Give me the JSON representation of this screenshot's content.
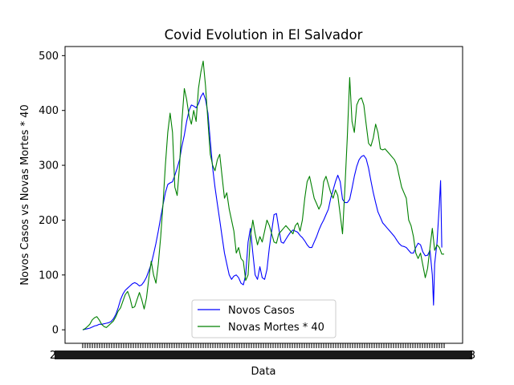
{
  "chart_data": {
    "type": "line",
    "title": "Covid Evolution in El Salvador",
    "xlabel": "Data",
    "ylabel": "Novos Casos vs Novas Mortes * 40",
    "ylim": [
      -24.6,
      516.6
    ],
    "yticks": [
      0,
      100,
      200,
      300,
      400,
      500
    ],
    "xtick_labels": {
      "left": "2",
      "right": "3"
    },
    "grid": false,
    "legend_position": "lower-center",
    "series": [
      {
        "name": "Novos Casos",
        "color": "#0000ff",
        "points": [
          [
            0,
            0
          ],
          [
            2,
            1
          ],
          [
            4,
            2
          ],
          [
            6,
            3
          ],
          [
            8,
            5
          ],
          [
            10,
            7
          ],
          [
            12,
            8
          ],
          [
            14,
            10
          ],
          [
            16,
            10
          ],
          [
            18,
            11
          ],
          [
            20,
            12
          ],
          [
            22,
            13
          ],
          [
            24,
            15
          ],
          [
            26,
            20
          ],
          [
            28,
            28
          ],
          [
            30,
            40
          ],
          [
            32,
            55
          ],
          [
            34,
            65
          ],
          [
            36,
            72
          ],
          [
            38,
            76
          ],
          [
            40,
            80
          ],
          [
            42,
            84
          ],
          [
            44,
            86
          ],
          [
            46,
            84
          ],
          [
            48,
            80
          ],
          [
            50,
            82
          ],
          [
            52,
            88
          ],
          [
            54,
            96
          ],
          [
            56,
            108
          ],
          [
            58,
            120
          ],
          [
            60,
            138
          ],
          [
            62,
            158
          ],
          [
            64,
            180
          ],
          [
            66,
            205
          ],
          [
            68,
            228
          ],
          [
            70,
            250
          ],
          [
            72,
            265
          ],
          [
            74,
            268
          ],
          [
            76,
            270
          ],
          [
            78,
            282
          ],
          [
            80,
            295
          ],
          [
            82,
            310
          ],
          [
            84,
            335
          ],
          [
            86,
            355
          ],
          [
            88,
            380
          ],
          [
            90,
            400
          ],
          [
            92,
            410
          ],
          [
            94,
            408
          ],
          [
            96,
            405
          ],
          [
            98,
            412
          ],
          [
            100,
            425
          ],
          [
            102,
            432
          ],
          [
            104,
            420
          ],
          [
            106,
            395
          ],
          [
            108,
            345
          ],
          [
            110,
            295
          ],
          [
            112,
            260
          ],
          [
            114,
            230
          ],
          [
            116,
            200
          ],
          [
            118,
            170
          ],
          [
            120,
            140
          ],
          [
            122,
            120
          ],
          [
            124,
            100
          ],
          [
            126,
            92
          ],
          [
            128,
            98
          ],
          [
            130,
            100
          ],
          [
            132,
            95
          ],
          [
            134,
            85
          ],
          [
            136,
            82
          ],
          [
            138,
            100
          ],
          [
            140,
            160
          ],
          [
            142,
            185
          ],
          [
            144,
            140
          ],
          [
            146,
            100
          ],
          [
            148,
            92
          ],
          [
            150,
            115
          ],
          [
            152,
            95
          ],
          [
            154,
            92
          ],
          [
            156,
            110
          ],
          [
            158,
            150
          ],
          [
            160,
            180
          ],
          [
            162,
            210
          ],
          [
            164,
            212
          ],
          [
            166,
            185
          ],
          [
            168,
            160
          ],
          [
            170,
            158
          ],
          [
            172,
            165
          ],
          [
            174,
            172
          ],
          [
            176,
            178
          ],
          [
            178,
            182
          ],
          [
            180,
            180
          ],
          [
            182,
            178
          ],
          [
            184,
            172
          ],
          [
            186,
            168
          ],
          [
            188,
            162
          ],
          [
            190,
            155
          ],
          [
            192,
            150
          ],
          [
            194,
            150
          ],
          [
            196,
            160
          ],
          [
            198,
            170
          ],
          [
            200,
            182
          ],
          [
            202,
            192
          ],
          [
            204,
            200
          ],
          [
            206,
            210
          ],
          [
            208,
            220
          ],
          [
            210,
            240
          ],
          [
            212,
            255
          ],
          [
            214,
            270
          ],
          [
            216,
            282
          ],
          [
            218,
            270
          ],
          [
            220,
            238
          ],
          [
            222,
            232
          ],
          [
            224,
            232
          ],
          [
            226,
            238
          ],
          [
            228,
            258
          ],
          [
            230,
            280
          ],
          [
            232,
            298
          ],
          [
            234,
            310
          ],
          [
            236,
            316
          ],
          [
            238,
            318
          ],
          [
            240,
            312
          ],
          [
            242,
            295
          ],
          [
            244,
            272
          ],
          [
            246,
            250
          ],
          [
            248,
            232
          ],
          [
            250,
            215
          ],
          [
            252,
            205
          ],
          [
            254,
            195
          ],
          [
            256,
            190
          ],
          [
            258,
            185
          ],
          [
            260,
            180
          ],
          [
            262,
            175
          ],
          [
            264,
            170
          ],
          [
            266,
            163
          ],
          [
            268,
            157
          ],
          [
            270,
            153
          ],
          [
            272,
            152
          ],
          [
            274,
            150
          ],
          [
            276,
            145
          ],
          [
            278,
            140
          ],
          [
            280,
            140
          ],
          [
            282,
            150
          ],
          [
            284,
            158
          ],
          [
            286,
            155
          ],
          [
            288,
            142
          ],
          [
            290,
            135
          ],
          [
            292,
            136
          ],
          [
            294,
            145
          ],
          [
            296,
            100
          ],
          [
            297,
            45
          ],
          [
            298,
            120
          ],
          [
            300,
            160
          ],
          [
            302,
            230
          ],
          [
            303,
            272
          ],
          [
            304,
            150
          ]
        ]
      },
      {
        "name": "Novas Mortes * 40",
        "color": "#008000",
        "points": [
          [
            0,
            0
          ],
          [
            2,
            2
          ],
          [
            4,
            6
          ],
          [
            6,
            10
          ],
          [
            8,
            18
          ],
          [
            10,
            22
          ],
          [
            12,
            24
          ],
          [
            14,
            18
          ],
          [
            16,
            10
          ],
          [
            18,
            6
          ],
          [
            20,
            4
          ],
          [
            22,
            8
          ],
          [
            24,
            12
          ],
          [
            26,
            16
          ],
          [
            28,
            24
          ],
          [
            30,
            34
          ],
          [
            32,
            40
          ],
          [
            34,
            52
          ],
          [
            36,
            64
          ],
          [
            38,
            70
          ],
          [
            40,
            58
          ],
          [
            42,
            40
          ],
          [
            44,
            42
          ],
          [
            46,
            55
          ],
          [
            48,
            68
          ],
          [
            50,
            55
          ],
          [
            52,
            38
          ],
          [
            54,
            58
          ],
          [
            56,
            95
          ],
          [
            58,
            125
          ],
          [
            60,
            100
          ],
          [
            62,
            85
          ],
          [
            64,
            120
          ],
          [
            66,
            170
          ],
          [
            68,
            230
          ],
          [
            70,
            300
          ],
          [
            72,
            360
          ],
          [
            74,
            395
          ],
          [
            76,
            360
          ],
          [
            78,
            260
          ],
          [
            80,
            245
          ],
          [
            82,
            300
          ],
          [
            84,
            380
          ],
          [
            86,
            440
          ],
          [
            88,
            420
          ],
          [
            90,
            390
          ],
          [
            92,
            375
          ],
          [
            94,
            400
          ],
          [
            96,
            380
          ],
          [
            98,
            440
          ],
          [
            100,
            470
          ],
          [
            102,
            490
          ],
          [
            104,
            445
          ],
          [
            106,
            380
          ],
          [
            108,
            320
          ],
          [
            110,
            300
          ],
          [
            112,
            290
          ],
          [
            114,
            310
          ],
          [
            116,
            320
          ],
          [
            118,
            280
          ],
          [
            120,
            240
          ],
          [
            122,
            250
          ],
          [
            124,
            220
          ],
          [
            126,
            200
          ],
          [
            128,
            180
          ],
          [
            130,
            140
          ],
          [
            132,
            150
          ],
          [
            134,
            130
          ],
          [
            136,
            125
          ],
          [
            138,
            90
          ],
          [
            140,
            100
          ],
          [
            142,
            170
          ],
          [
            144,
            200
          ],
          [
            146,
            175
          ],
          [
            148,
            155
          ],
          [
            150,
            170
          ],
          [
            152,
            160
          ],
          [
            154,
            180
          ],
          [
            156,
            200
          ],
          [
            158,
            190
          ],
          [
            160,
            175
          ],
          [
            162,
            160
          ],
          [
            164,
            158
          ],
          [
            166,
            175
          ],
          [
            168,
            180
          ],
          [
            170,
            185
          ],
          [
            172,
            190
          ],
          [
            174,
            185
          ],
          [
            176,
            180
          ],
          [
            178,
            175
          ],
          [
            180,
            190
          ],
          [
            182,
            195
          ],
          [
            184,
            180
          ],
          [
            186,
            200
          ],
          [
            188,
            240
          ],
          [
            190,
            270
          ],
          [
            192,
            280
          ],
          [
            194,
            260
          ],
          [
            196,
            240
          ],
          [
            198,
            230
          ],
          [
            200,
            220
          ],
          [
            202,
            230
          ],
          [
            204,
            270
          ],
          [
            206,
            280
          ],
          [
            208,
            265
          ],
          [
            210,
            250
          ],
          [
            212,
            240
          ],
          [
            214,
            255
          ],
          [
            216,
            245
          ],
          [
            218,
            210
          ],
          [
            220,
            175
          ],
          [
            222,
            260
          ],
          [
            224,
            350
          ],
          [
            226,
            460
          ],
          [
            228,
            380
          ],
          [
            230,
            360
          ],
          [
            232,
            410
          ],
          [
            234,
            420
          ],
          [
            236,
            423
          ],
          [
            238,
            410
          ],
          [
            240,
            375
          ],
          [
            242,
            340
          ],
          [
            244,
            335
          ],
          [
            246,
            350
          ],
          [
            248,
            375
          ],
          [
            250,
            360
          ],
          [
            252,
            330
          ],
          [
            254,
            328
          ],
          [
            256,
            330
          ],
          [
            258,
            325
          ],
          [
            260,
            320
          ],
          [
            262,
            315
          ],
          [
            264,
            310
          ],
          [
            266,
            300
          ],
          [
            268,
            280
          ],
          [
            270,
            260
          ],
          [
            272,
            250
          ],
          [
            274,
            240
          ],
          [
            276,
            200
          ],
          [
            278,
            190
          ],
          [
            280,
            170
          ],
          [
            282,
            140
          ],
          [
            284,
            130
          ],
          [
            286,
            140
          ],
          [
            288,
            118
          ],
          [
            290,
            95
          ],
          [
            292,
            112
          ],
          [
            294,
            150
          ],
          [
            296,
            185
          ],
          [
            298,
            145
          ],
          [
            300,
            155
          ],
          [
            302,
            150
          ],
          [
            304,
            138
          ],
          [
            306,
            138
          ]
        ]
      }
    ]
  }
}
